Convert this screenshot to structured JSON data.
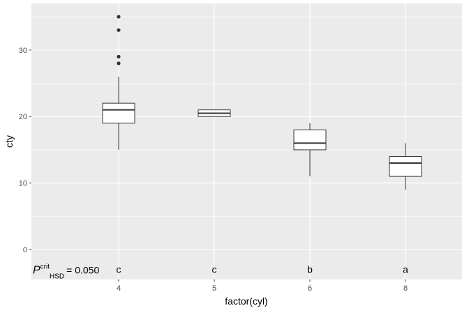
{
  "chart_data": {
    "type": "boxplot",
    "xlabel": "factor(cyl)",
    "ylabel": "cty",
    "categories": [
      "4",
      "5",
      "6",
      "8"
    ],
    "ylim": [
      -4.5,
      37
    ],
    "yticks": [
      0,
      10,
      20,
      30
    ],
    "grid": true,
    "boxes": [
      {
        "category": "4",
        "lower_whisker": 15,
        "q1": 19,
        "median": 21,
        "q3": 22,
        "upper_whisker": 26,
        "outliers": [
          28,
          29,
          33,
          35
        ],
        "letter": "c"
      },
      {
        "category": "5",
        "lower_whisker": 20,
        "q1": 20,
        "median": 20.5,
        "q3": 21,
        "upper_whisker": 21,
        "outliers": [],
        "letter": "c"
      },
      {
        "category": "6",
        "lower_whisker": 11,
        "q1": 15,
        "median": 16,
        "q3": 18,
        "upper_whisker": 19,
        "outliers": [],
        "letter": "b"
      },
      {
        "category": "8",
        "lower_whisker": 9,
        "q1": 11,
        "median": 13,
        "q3": 14,
        "upper_whisker": 16,
        "outliers": [],
        "letter": "a"
      }
    ],
    "letter_y": -3,
    "annotation": {
      "symbol": "P",
      "superscript": "crit",
      "subscript": "HSD",
      "text": "= 0.050"
    },
    "colors": {
      "panel": "#EBEBEB",
      "grid": "#FFFFFF",
      "box_fill": "#FFFFFF",
      "line": "#333333",
      "tick_text": "#4D4D4D"
    }
  }
}
